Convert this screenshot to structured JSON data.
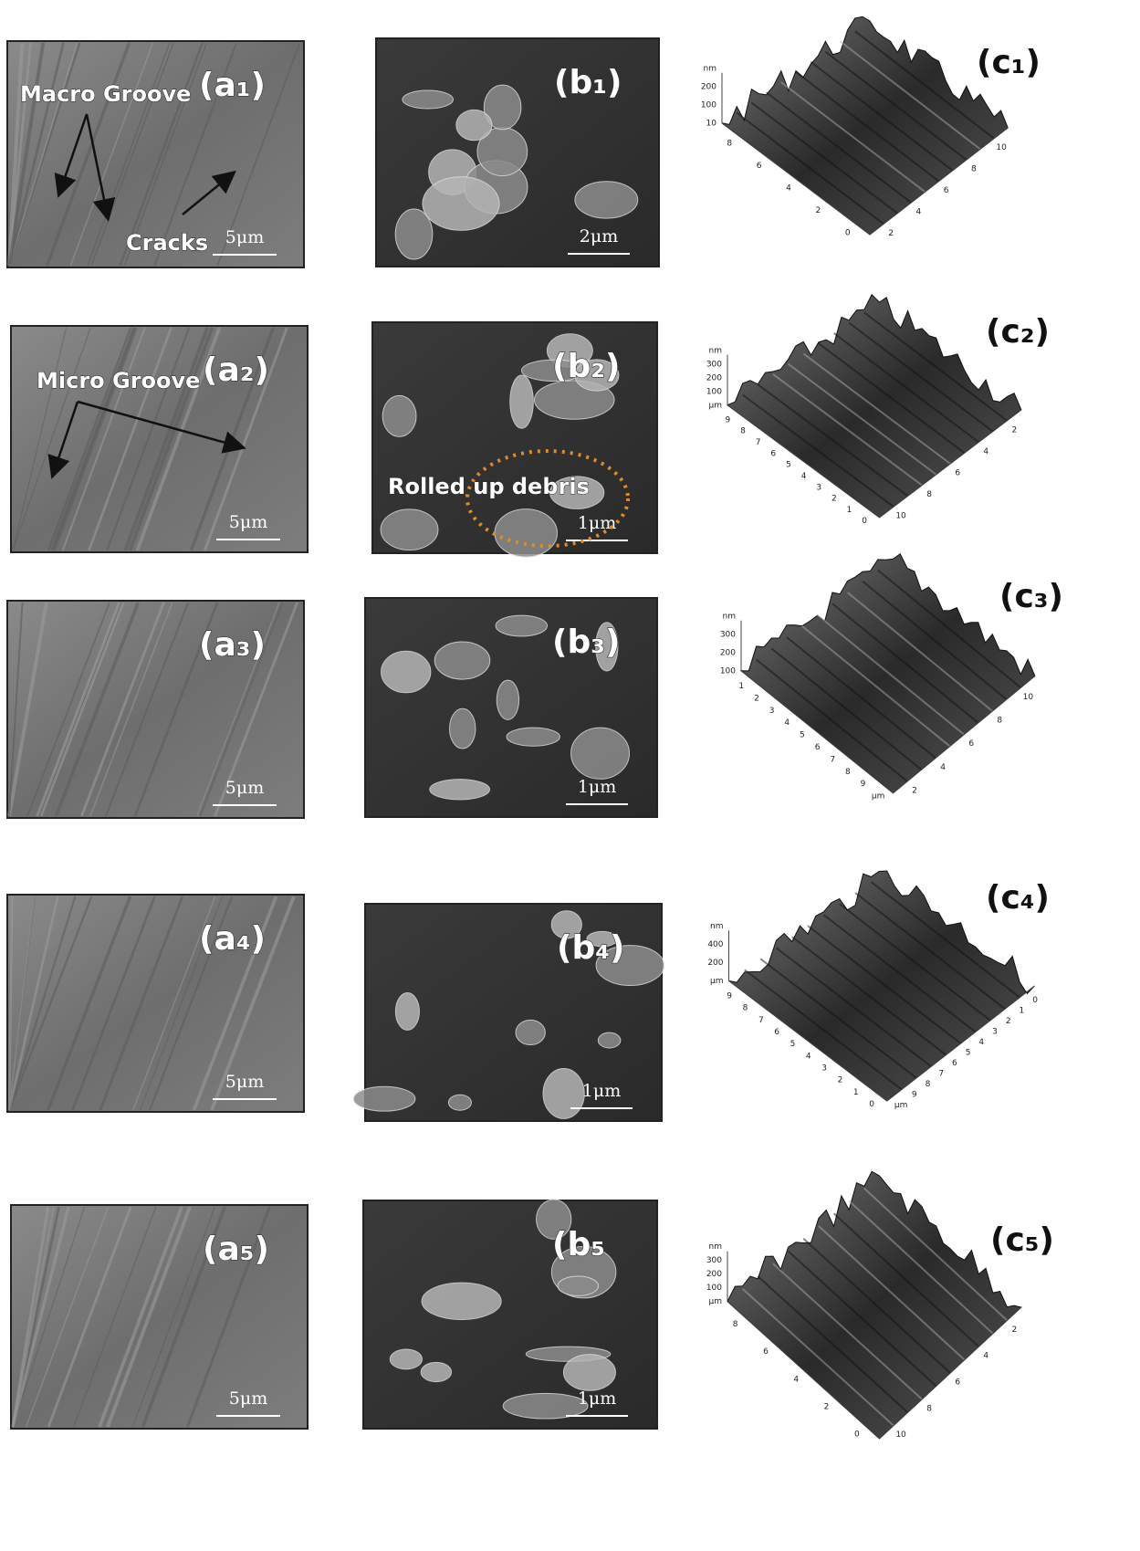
{
  "annotations": {
    "macro_groove": "Macro Groove",
    "cracks": "Cracks",
    "micro_groove": "Micro Groove",
    "rolled_up_debris": "Rolled up debris"
  },
  "rows": [
    {
      "a": {
        "label": "(a₁)",
        "scale": "5μm"
      },
      "b": {
        "label": "(b₁)",
        "scale": "2μm"
      },
      "c": {
        "label": "(c₁)",
        "z_ticks": [
          "nm",
          "200",
          "100",
          "10"
        ],
        "x_ticks": [
          "8",
          "6",
          "4",
          "2",
          "0"
        ],
        "y_ticks": [
          "2",
          "4",
          "6",
          "8",
          "10"
        ]
      }
    },
    {
      "a": {
        "label": "(a₂)",
        "scale": "5μm"
      },
      "b": {
        "label": "(b₂)",
        "scale": "1μm"
      },
      "c": {
        "label": "(c₂)",
        "z_ticks": [
          "nm",
          "300",
          "200",
          "100",
          "μm"
        ],
        "x_ticks": [
          "9",
          "8",
          "7",
          "6",
          "5",
          "4",
          "3",
          "2",
          "1",
          "0"
        ],
        "y_ticks": [
          "10",
          "8",
          "6",
          "4",
          "2"
        ]
      }
    },
    {
      "a": {
        "label": "(a₃)",
        "scale": "5μm"
      },
      "b": {
        "label": "(b₃)",
        "scale": "1μm"
      },
      "c": {
        "label": "(c₃)",
        "z_ticks": [
          "nm",
          "300",
          "200",
          "100"
        ],
        "x_ticks": [
          "1",
          "2",
          "3",
          "4",
          "5",
          "6",
          "7",
          "8",
          "9",
          "μm"
        ],
        "y_ticks": [
          "2",
          "4",
          "6",
          "8",
          "10"
        ]
      }
    },
    {
      "a": {
        "label": "(a₄)",
        "scale": "5μm"
      },
      "b": {
        "label": "(b₄)",
        "scale": "1μm"
      },
      "c": {
        "label": "(c₄)",
        "z_ticks": [
          "nm",
          "400",
          "200",
          "μm"
        ],
        "x_ticks": [
          "9",
          "8",
          "7",
          "6",
          "5",
          "4",
          "3",
          "2",
          "1",
          "0"
        ],
        "y_ticks": [
          "μm",
          "9",
          "8",
          "7",
          "6",
          "5",
          "4",
          "3",
          "2",
          "1",
          "0"
        ]
      }
    },
    {
      "a": {
        "label": "(a₅)",
        "scale": "5μm"
      },
      "b": {
        "label": "(b₅",
        "scale": "1μm"
      },
      "c": {
        "label": "(c₅)",
        "z_ticks": [
          "nm",
          "300",
          "200",
          "100",
          "μm"
        ],
        "x_ticks": [
          "8",
          "6",
          "4",
          "2",
          "0"
        ],
        "y_ticks": [
          "10",
          "8",
          "6",
          "4",
          "2"
        ]
      }
    }
  ]
}
